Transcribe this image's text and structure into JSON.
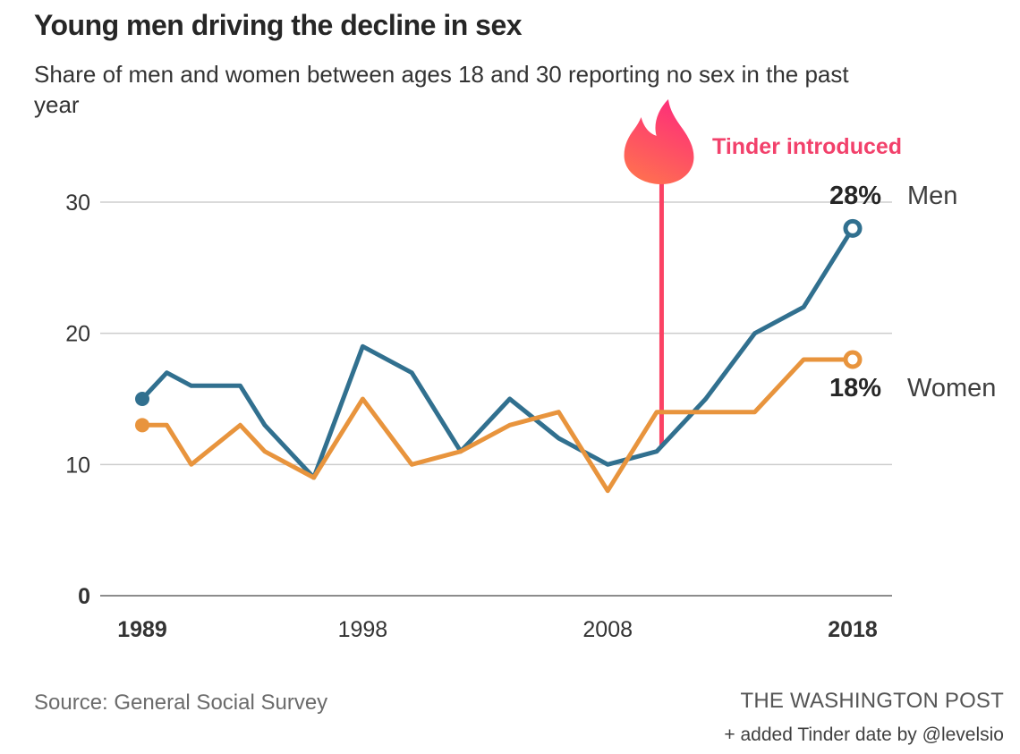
{
  "header": {
    "title": "Young men driving the decline in sex",
    "subtitle": "Share of men and women between ages 18 and 30 reporting no sex in the past\nyear"
  },
  "annotation": {
    "label": "Tinder introduced"
  },
  "end_labels": {
    "men": {
      "value": "28%",
      "name": "Men"
    },
    "women": {
      "value": "18%",
      "name": "Women"
    }
  },
  "footer": {
    "source": "Source: General Social Survey",
    "publisher": "THE WASHINGTON POST",
    "edit_note": "+ added Tinder date by @levelsio"
  },
  "chart_data": {
    "type": "line",
    "title": "Young men driving the decline in sex",
    "subtitle": "Share of men and women between ages 18 and 30 reporting no sex in the past year",
    "x": [
      1989,
      1990,
      1991,
      1993,
      1994,
      1996,
      1998,
      2000,
      2002,
      2004,
      2006,
      2008,
      2010,
      2012,
      2014,
      2016,
      2018
    ],
    "series": [
      {
        "name": "Men",
        "color": "#31708f",
        "end_label": "28%",
        "values": [
          15,
          17,
          16,
          16,
          13,
          9,
          19,
          17,
          11,
          15,
          12,
          10,
          11,
          15,
          20,
          22,
          28
        ]
      },
      {
        "name": "Women",
        "color": "#e8943d",
        "end_label": "18%",
        "values": [
          13,
          13,
          10,
          13,
          11,
          9,
          15,
          10,
          11,
          13,
          14,
          8,
          14,
          14,
          14,
          18,
          18
        ]
      }
    ],
    "annotation": {
      "label": "Tinder introduced",
      "x": 2010.2,
      "line_color": "#fb4264",
      "text_color": "#f2416b",
      "flame_gradient": [
        "#fd2d7a",
        "#ff7050"
      ]
    },
    "x_ticks": [
      {
        "value": 1989,
        "label": "1989",
        "bold": true
      },
      {
        "value": 1998,
        "label": "1998",
        "bold": false
      },
      {
        "value": 2008,
        "label": "2008",
        "bold": false
      },
      {
        "value": 2018,
        "label": "2018",
        "bold": true
      }
    ],
    "y_ticks": [
      {
        "value": 0,
        "label": "0",
        "bold": true
      },
      {
        "value": 10,
        "label": "10",
        "bold": false
      },
      {
        "value": 20,
        "label": "20",
        "bold": false
      },
      {
        "value": 30,
        "label": "30",
        "bold": false
      }
    ],
    "xlim": [
      1989,
      2018
    ],
    "ylim": [
      0,
      30
    ],
    "grid": "horizontal",
    "legend_position": "right-end-labels"
  }
}
